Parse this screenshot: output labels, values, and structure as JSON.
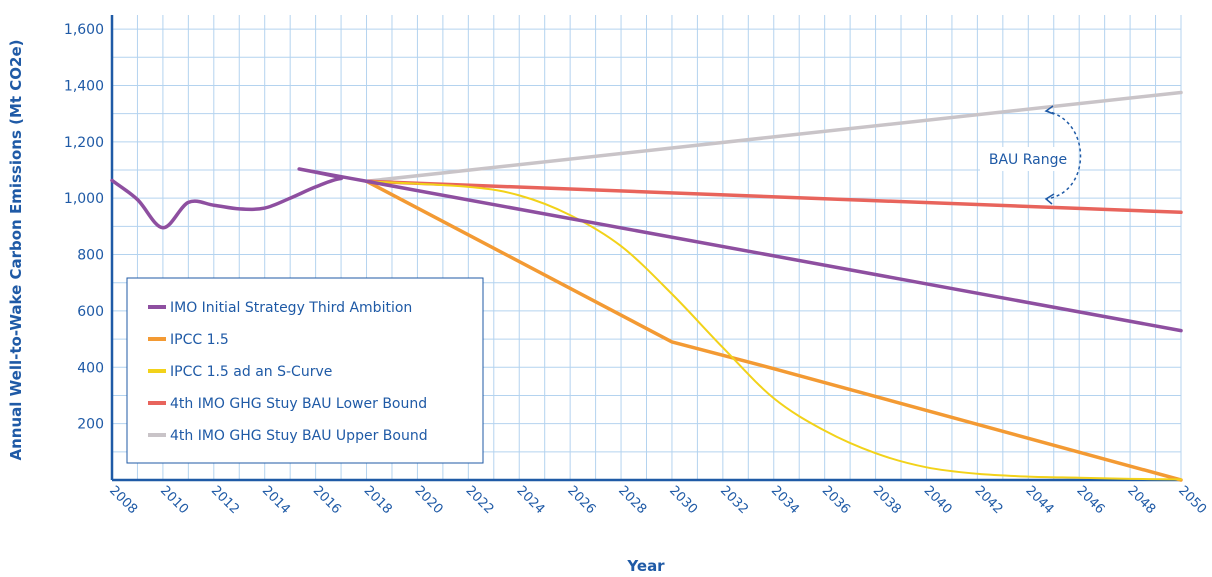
{
  "chart_data": {
    "type": "line",
    "xlabel": "Year",
    "ylabel": "Annual Well-to-Wake Carbon Emissions (Mt CO2e)",
    "xlim": [
      2008,
      2050
    ],
    "ylim": [
      0,
      1650
    ],
    "x_ticks": [
      "2008",
      "2010",
      "2012",
      "2014",
      "2016",
      "2018",
      "2020",
      "2022",
      "2024",
      "2026",
      "2028",
      "2030",
      "2032",
      "2034",
      "2036",
      "2038",
      "2040",
      "2042",
      "2044",
      "2046",
      "2048",
      "2050"
    ],
    "y_ticks": [
      "200",
      "400",
      "600",
      "800",
      "1,000",
      "1,200",
      "1,400",
      "1,600"
    ],
    "y_tick_values": [
      200,
      400,
      600,
      800,
      1000,
      1200,
      1400,
      1600
    ],
    "grid": true,
    "legend_position": "lower-left",
    "series": [
      {
        "name": "IMO Initial Strategy Third Ambition",
        "color": "#8e4fa0",
        "smooth": true,
        "points": [
          [
            2008,
            1063
          ],
          [
            2009,
            995
          ],
          [
            2010,
            895
          ],
          [
            2011,
            985
          ],
          [
            2012,
            975
          ],
          [
            2013,
            962
          ],
          [
            2014,
            965
          ],
          [
            2015,
            1000
          ],
          [
            2016,
            1040
          ],
          [
            2017,
            1070
          ],
          [
            2018,
            1060
          ],
          [
            2050,
            530
          ]
        ]
      },
      {
        "name": "IPCC 1.5",
        "color": "#f39a33",
        "smooth": false,
        "points": [
          [
            2018,
            1060
          ],
          [
            2030,
            490
          ],
          [
            2034,
            395
          ],
          [
            2050,
            0
          ]
        ]
      },
      {
        "name": "IPCC 1.5 ad an S-Curve",
        "color": "#f2d21a",
        "smooth": true,
        "points": [
          [
            2018,
            1060
          ],
          [
            2022,
            1040
          ],
          [
            2024,
            1010
          ],
          [
            2026,
            940
          ],
          [
            2028,
            830
          ],
          [
            2030,
            660
          ],
          [
            2032,
            470
          ],
          [
            2034,
            290
          ],
          [
            2036,
            175
          ],
          [
            2038,
            95
          ],
          [
            2040,
            45
          ],
          [
            2042,
            22
          ],
          [
            2044,
            12
          ],
          [
            2046,
            8
          ],
          [
            2048,
            4
          ],
          [
            2050,
            2
          ]
        ]
      },
      {
        "name": "4th IMO GHG Stuy BAU Lower Bound",
        "color": "#e8645c",
        "smooth": false,
        "points": [
          [
            2018,
            1060
          ],
          [
            2050,
            950
          ]
        ]
      },
      {
        "name": "4th IMO GHG Stuy BAU Upper Bound",
        "color": "#c9c4c8",
        "smooth": false,
        "points": [
          [
            2018,
            1060
          ],
          [
            2050,
            1375
          ]
        ]
      }
    ],
    "annotations": [
      {
        "text": "BAU Range"
      }
    ]
  }
}
